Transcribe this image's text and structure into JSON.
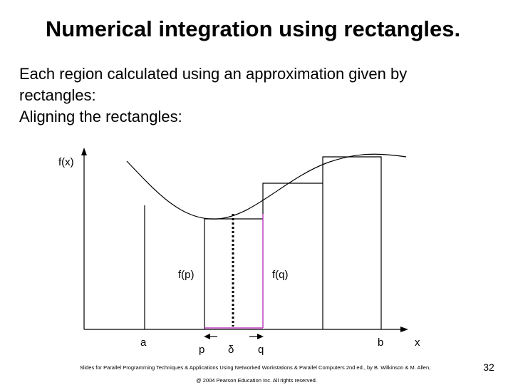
{
  "title": "Numerical integration using rectangles.",
  "body": [
    "Each region calculated using an approximation given by",
    "rectangles:",
    "Aligning the rectangles:"
  ],
  "diagram": {
    "y_axis_label": "f(x)",
    "x_axis_label": "x",
    "a": "a",
    "b": "b",
    "p": "p",
    "delta": "δ",
    "q": "q",
    "fp": "f(p)",
    "fq": "f(q)"
  },
  "footer": {
    "credit": "Slides for Parallel Programming Techniques & Applications Using Networked Workstations & Parallel Computers 2nd ed., by B. Wilkinson & M. Allen,",
    "copyright": "@ 2004 Pearson Education Inc. All rights reserved.",
    "page": "32"
  }
}
